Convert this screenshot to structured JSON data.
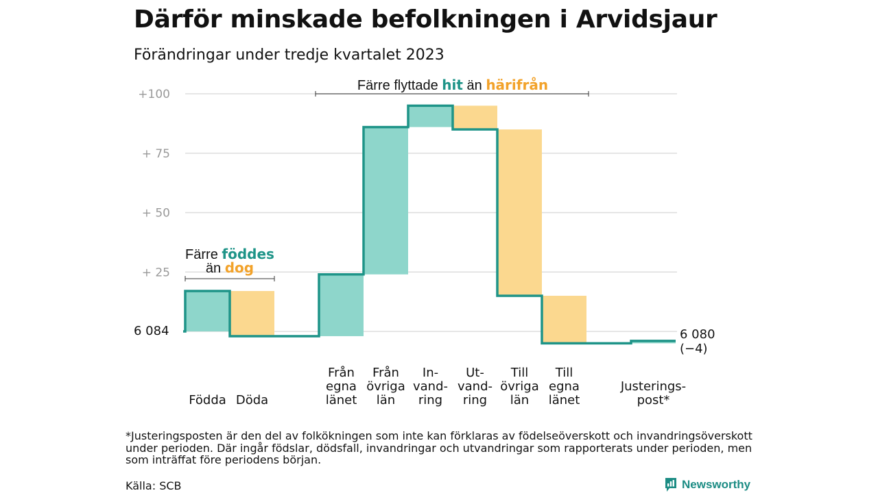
{
  "title": "Därför minskade befolkningen i Arvidsjaur",
  "subtitle": "Förändringar under tredje kvartalet 2023",
  "footnote": "*Justeringsposten är den del av folkökningen som inte kan förklaras av födelseöverskott och invandringsöverskott under perioden. Där ingår födslar, dödsfall, invandringar och utvandringar som rapporterats under perioden, men som inträffat före periodens början.",
  "source": "Källa: SCB",
  "brand": {
    "name": "Newsworthy",
    "icon": "bar-chart-logo-icon"
  },
  "colors": {
    "line": "#1e9488",
    "increase": "#8ed6cb",
    "decrease": "#fbd88f",
    "accent_teal": "#1e9488",
    "accent_orange": "#f2a22a",
    "grid": "#dddddd",
    "tick": "#999999"
  },
  "chart_data": {
    "type": "waterfall",
    "start": {
      "label": "6  084",
      "value": 6084
    },
    "end": {
      "label": "6 080",
      "change_label": "(−4)",
      "value": 6080
    },
    "ylim": [
      -5,
      100
    ],
    "ticks": [
      {
        "value": 100,
        "label": "+100"
      },
      {
        "value": 75,
        "label": "+  75"
      },
      {
        "value": 50,
        "label": "+  50"
      },
      {
        "value": 25,
        "label": "+  25"
      }
    ],
    "steps": [
      {
        "category": [
          "Födda"
        ],
        "value": 17,
        "kind": "increase"
      },
      {
        "category": [
          "Döda"
        ],
        "value": -19,
        "kind": "decrease"
      },
      {
        "category": [],
        "value": 0,
        "kind": "none"
      },
      {
        "category": [
          "Från",
          "egna",
          "länet"
        ],
        "value": 26,
        "kind": "increase"
      },
      {
        "category": [
          "Från",
          "övriga",
          "län"
        ],
        "value": 62,
        "kind": "increase"
      },
      {
        "category": [
          "In-",
          "vand-",
          "ring"
        ],
        "value": 9,
        "kind": "increase"
      },
      {
        "category": [
          "Ut-",
          "vand-",
          "ring"
        ],
        "value": -10,
        "kind": "decrease"
      },
      {
        "category": [
          "Till",
          "övriga",
          "län"
        ],
        "value": -70,
        "kind": "decrease"
      },
      {
        "category": [
          "Till",
          "egna",
          "länet"
        ],
        "value": -20,
        "kind": "decrease"
      },
      {
        "category": [],
        "value": 0,
        "kind": "none"
      },
      {
        "category": [
          "Justerings-",
          "post*"
        ],
        "value": 1,
        "kind": "increase"
      }
    ],
    "annotations": [
      {
        "id": "births",
        "line1_prefix": "Färre ",
        "line1_word": "föddes",
        "line2_prefix": "än ",
        "line2_word": "dog",
        "from_step": 0,
        "to_step": 1
      },
      {
        "id": "moves",
        "prefix": "Färre flyttade ",
        "word1": "hit",
        "middle": " än ",
        "word2": "härifrån",
        "from_step": 3,
        "to_step": 8
      }
    ]
  }
}
